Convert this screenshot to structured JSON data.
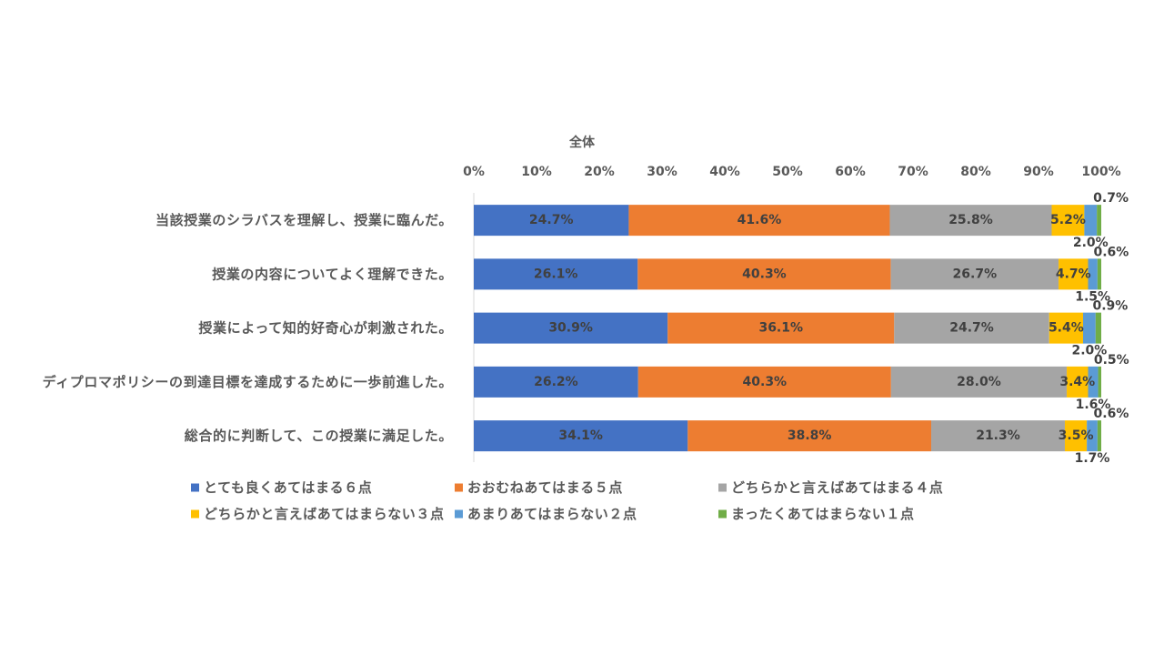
{
  "chart_data": {
    "type": "bar",
    "orientation": "horizontal",
    "stacking": "100%",
    "title": "全体",
    "categories": [
      "当該授業のシラバスを理解し、授業に臨んだ。",
      "授業の内容についてよく理解できた。",
      "授業によって知的好奇心が刺激された。",
      "ディプロマポリシーの到達目標を達成するために一歩前進した。",
      "総合的に判断して、この授業に満足した。"
    ],
    "series": [
      {
        "name": "とても良くあてはまる６点",
        "color": "#4472C4",
        "values": [
          24.7,
          26.1,
          30.9,
          26.2,
          34.1
        ]
      },
      {
        "name": "おおむねあてはまる５点",
        "color": "#ED7D31",
        "values": [
          41.6,
          40.3,
          36.1,
          40.3,
          38.8
        ]
      },
      {
        "name": "どちらかと言えばあてはまる４点",
        "color": "#A5A5A5",
        "values": [
          25.8,
          26.7,
          24.7,
          28.0,
          21.3
        ]
      },
      {
        "name": "どちらかと言えばあてはまらない３点",
        "color": "#FFC000",
        "values": [
          5.2,
          4.7,
          5.4,
          3.4,
          3.5
        ]
      },
      {
        "name": "あまりあてはまらない２点",
        "color": "#5B9BD5",
        "values": [
          2.0,
          1.5,
          2.0,
          1.6,
          1.7
        ]
      },
      {
        "name": "まったくあてはまらない１点",
        "color": "#70AD47",
        "values": [
          0.7,
          0.6,
          0.9,
          0.5,
          0.6
        ]
      }
    ],
    "xlim": [
      0,
      100
    ],
    "x_tick_labels": [
      "0%",
      "10%",
      "20%",
      "30%",
      "40%",
      "50%",
      "60%",
      "70%",
      "80%",
      "90%",
      "100%"
    ],
    "x_axis_side": "top",
    "grid": false,
    "legend": "bottom",
    "data_labels": true
  }
}
